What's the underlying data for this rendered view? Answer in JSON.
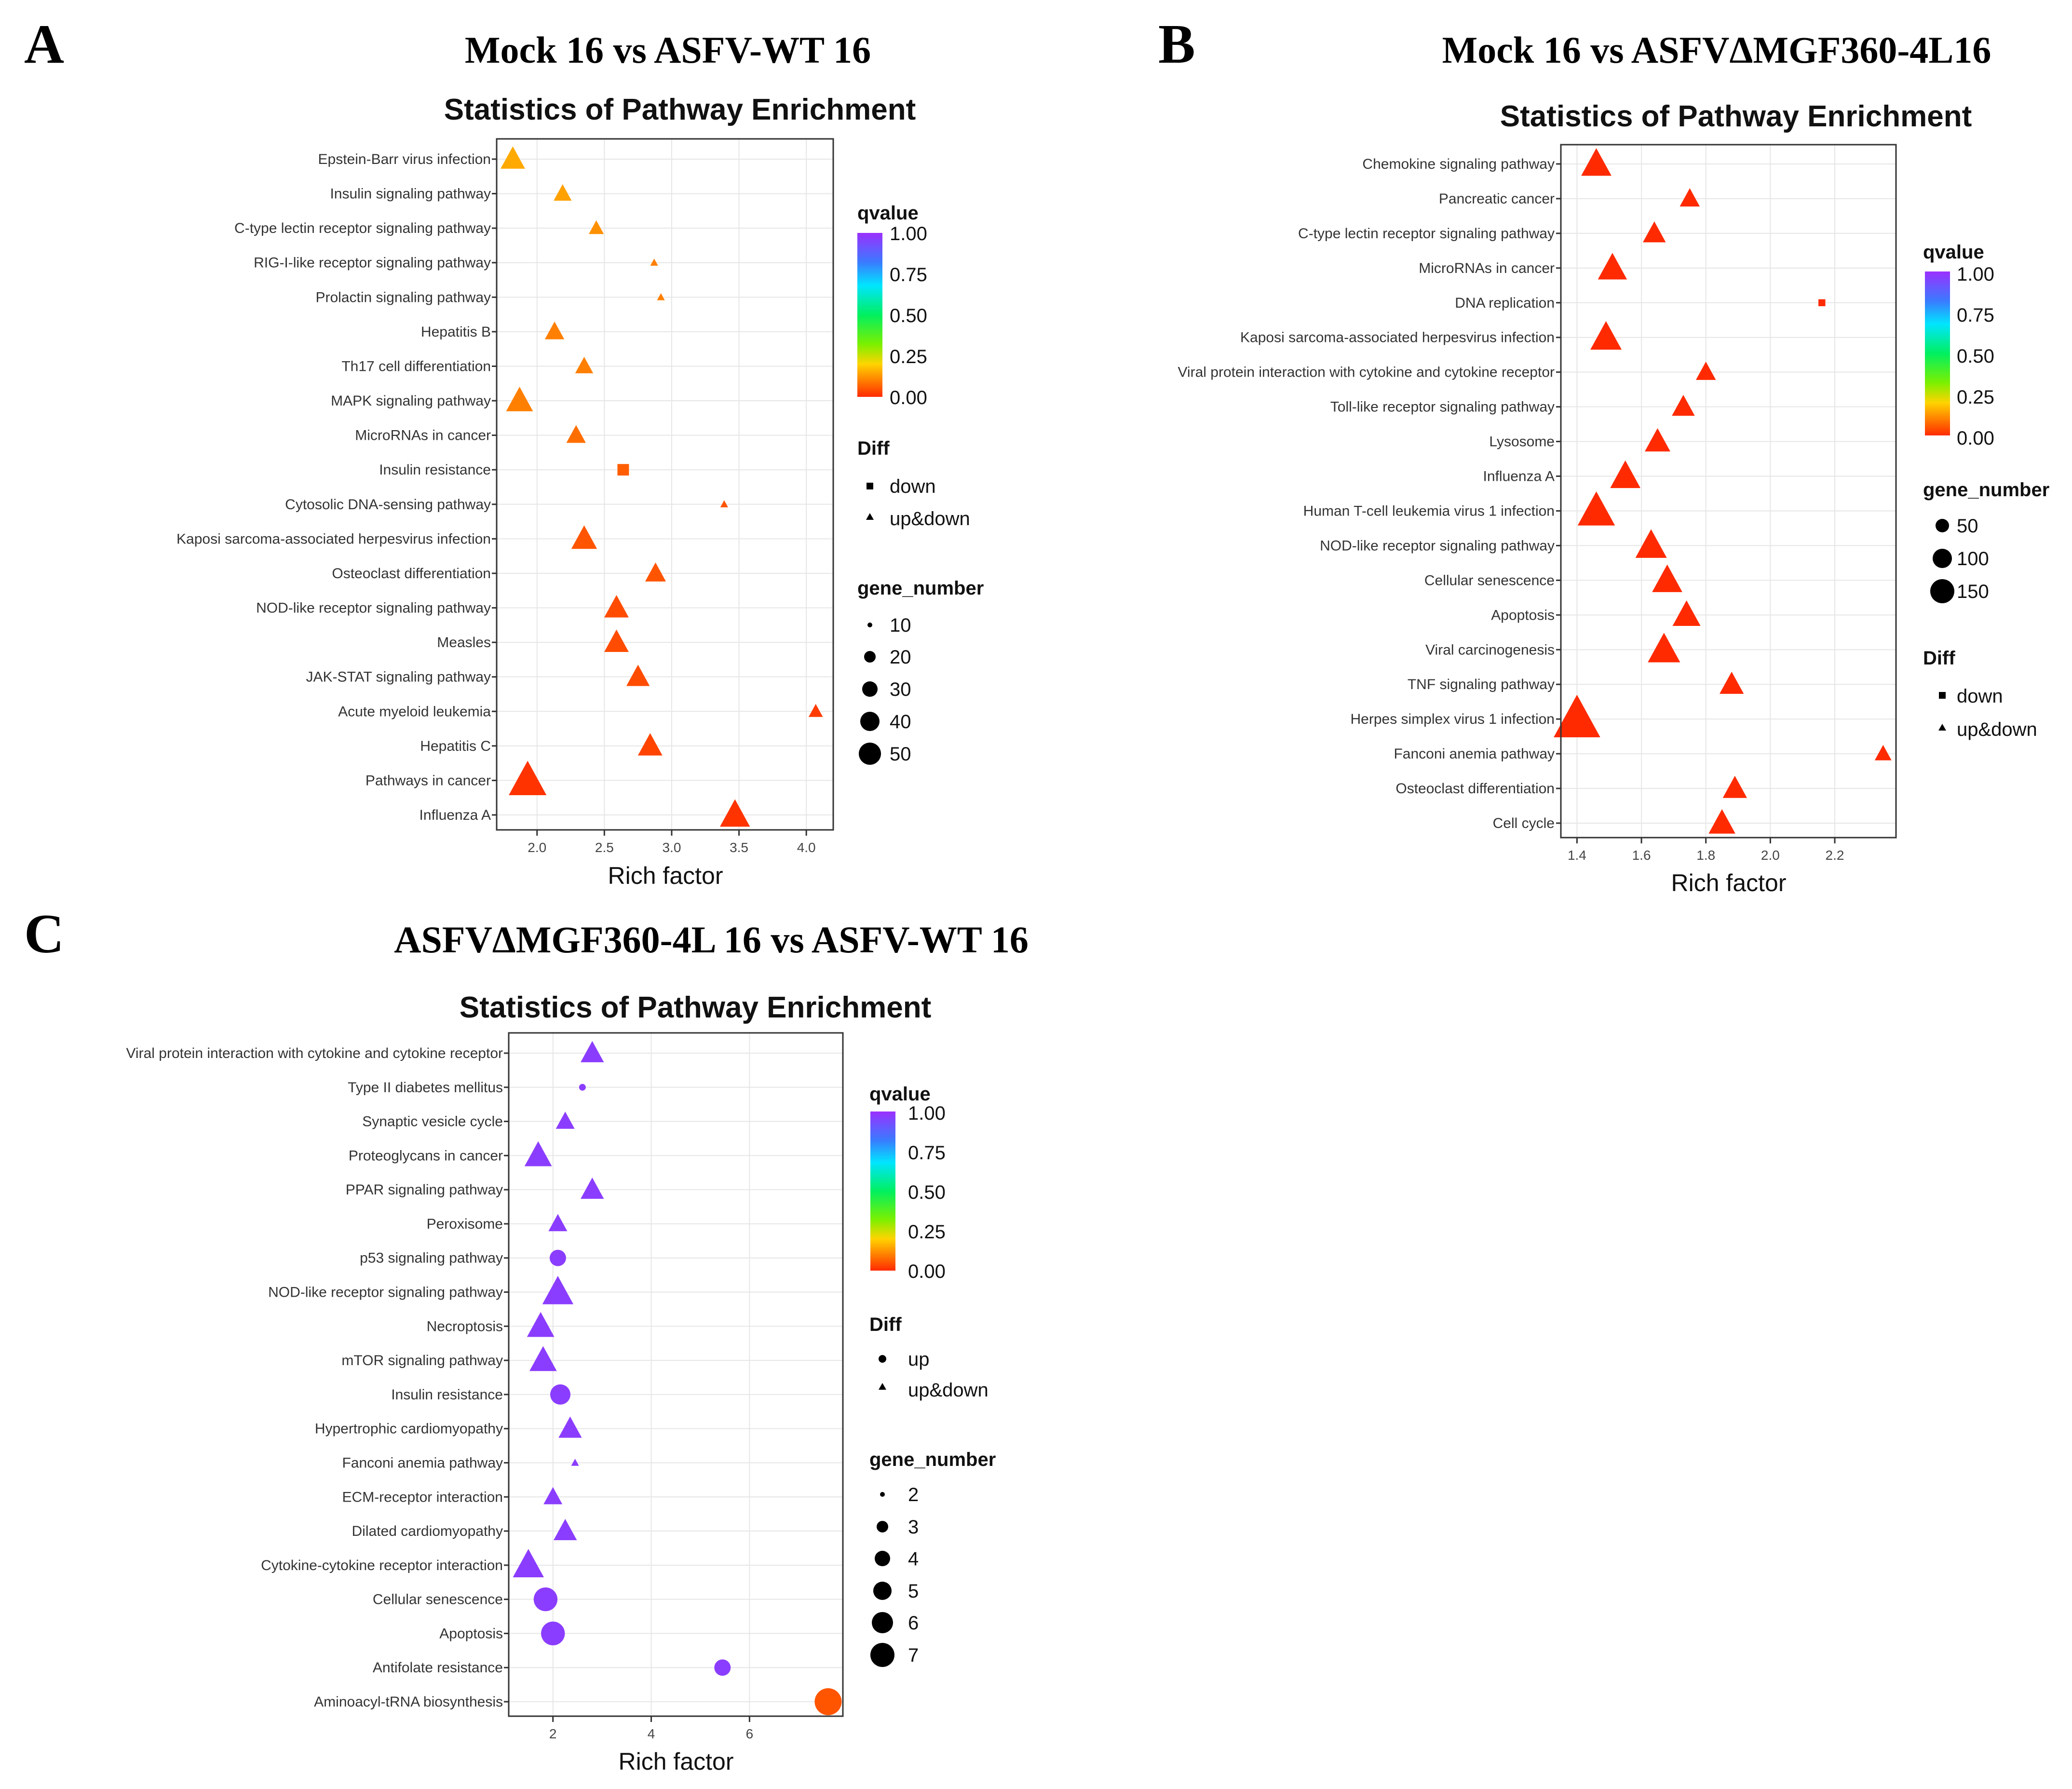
{
  "figure": {
    "letters": [
      "A",
      "B",
      "C"
    ]
  },
  "chart_data": [
    {
      "type": "scatter",
      "panel": "A",
      "panel_title": "Mock 16 vs ASFV-WT 16",
      "title": "Statistics of Pathway Enrichment",
      "xlabel": "Rich factor",
      "ylabel": "",
      "xlim": [
        1.7,
        4.2
      ],
      "xticks": [
        2.0,
        2.5,
        3.0,
        3.5,
        4.0
      ],
      "xtick_labels": [
        "2.0",
        "2.5",
        "3.0",
        "3.5",
        "4.0"
      ],
      "categories": [
        "Epstein-Barr virus infection",
        "Insulin signaling pathway",
        "C-type lectin receptor signaling pathway",
        "RIG-I-like receptor signaling pathway",
        "Prolactin signaling pathway",
        "Hepatitis B",
        "Th17 cell differentiation",
        "MAPK signaling pathway",
        "MicroRNAs in cancer",
        "Insulin resistance",
        "Cytosolic DNA-sensing pathway",
        "Kaposi sarcoma-associated herpesvirus infection",
        "Osteoclast differentiation",
        "NOD-like receptor signaling pathway",
        "Measles",
        "JAK-STAT signaling pathway",
        "Acute myeloid leukemia",
        "Hepatitis C",
        "Pathways in cancer",
        "Influenza A"
      ],
      "points": [
        {
          "x": 1.82,
          "qvalue": 0.15,
          "gene_number": 32,
          "diff": "up&down"
        },
        {
          "x": 2.19,
          "qvalue": 0.14,
          "gene_number": 22,
          "diff": "up&down"
        },
        {
          "x": 2.44,
          "qvalue": 0.12,
          "gene_number": 18,
          "diff": "up&down"
        },
        {
          "x": 2.87,
          "qvalue": 0.1,
          "gene_number": 8,
          "diff": "up&down"
        },
        {
          "x": 2.92,
          "qvalue": 0.1,
          "gene_number": 9,
          "diff": "up&down"
        },
        {
          "x": 2.13,
          "qvalue": 0.1,
          "gene_number": 24,
          "diff": "up&down"
        },
        {
          "x": 2.35,
          "qvalue": 0.1,
          "gene_number": 22,
          "diff": "up&down"
        },
        {
          "x": 1.87,
          "qvalue": 0.1,
          "gene_number": 36,
          "diff": "up&down"
        },
        {
          "x": 2.29,
          "qvalue": 0.08,
          "gene_number": 24,
          "diff": "up&down"
        },
        {
          "x": 2.64,
          "qvalue": 0.06,
          "gene_number": 20,
          "diff": "down"
        },
        {
          "x": 3.39,
          "qvalue": 0.05,
          "gene_number": 9,
          "diff": "up&down"
        },
        {
          "x": 2.35,
          "qvalue": 0.05,
          "gene_number": 34,
          "diff": "up&down"
        },
        {
          "x": 2.88,
          "qvalue": 0.05,
          "gene_number": 26,
          "diff": "up&down"
        },
        {
          "x": 2.59,
          "qvalue": 0.04,
          "gene_number": 32,
          "diff": "up&down"
        },
        {
          "x": 2.59,
          "qvalue": 0.04,
          "gene_number": 32,
          "diff": "up&down"
        },
        {
          "x": 2.75,
          "qvalue": 0.04,
          "gene_number": 30,
          "diff": "up&down"
        },
        {
          "x": 4.07,
          "qvalue": 0.02,
          "gene_number": 17,
          "diff": "up&down"
        },
        {
          "x": 2.84,
          "qvalue": 0.03,
          "gene_number": 32,
          "diff": "up&down"
        },
        {
          "x": 1.93,
          "qvalue": 0.01,
          "gene_number": 58,
          "diff": "up&down"
        },
        {
          "x": 3.47,
          "qvalue": 0.01,
          "gene_number": 42,
          "diff": "up&down"
        }
      ],
      "legend": {
        "qvalue_title": "qvalue",
        "qvalue_ticks": [
          "1.00",
          "0.75",
          "0.50",
          "0.25",
          "0.00"
        ],
        "diff_title": "Diff",
        "diff_items": [
          "down",
          "up&down"
        ],
        "size_title": "gene_number",
        "size_items": [
          "10",
          "20",
          "30",
          "40",
          "50"
        ]
      }
    },
    {
      "type": "scatter",
      "panel": "B",
      "panel_title": "Mock 16 vs ASFVΔMGF360-4L16",
      "title": "Statistics of Pathway Enrichment",
      "xlabel": "Rich factor",
      "ylabel": "",
      "xlim": [
        1.35,
        2.39
      ],
      "xticks": [
        1.4,
        1.6,
        1.8,
        2.0,
        2.2
      ],
      "xtick_labels": [
        "1.4",
        "1.6",
        "1.8",
        "2.0",
        "2.2"
      ],
      "categories": [
        "Chemokine signaling pathway",
        "Pancreatic cancer",
        "C-type lectin receptor signaling pathway",
        "MicroRNAs in cancer",
        "DNA replication",
        "Kaposi sarcoma-associated herpesvirus infection",
        "Viral protein interaction with cytokine and cytokine receptor",
        "Toll-like receptor signaling pathway",
        "Lysosome",
        "Influenza A",
        "Human T-cell leukemia virus 1 infection",
        "NOD-like receptor signaling pathway",
        "Cellular senescence",
        "Apoptosis",
        "Viral carcinogenesis",
        "TNF signaling pathway",
        "Herpes simplex virus 1 infection",
        "Fanconi anemia pathway",
        "Osteoclast differentiation",
        "Cell cycle"
      ],
      "points": [
        {
          "x": 1.46,
          "qvalue": 0.0,
          "gene_number": 85,
          "diff": "up&down"
        },
        {
          "x": 1.75,
          "qvalue": 0.0,
          "gene_number": 45,
          "diff": "up&down"
        },
        {
          "x": 1.64,
          "qvalue": 0.0,
          "gene_number": 55,
          "diff": "up&down"
        },
        {
          "x": 1.51,
          "qvalue": 0.0,
          "gene_number": 80,
          "diff": "up&down"
        },
        {
          "x": 2.16,
          "qvalue": 0.0,
          "gene_number": 18,
          "diff": "down"
        },
        {
          "x": 1.49,
          "qvalue": 0.0,
          "gene_number": 90,
          "diff": "up&down"
        },
        {
          "x": 1.8,
          "qvalue": 0.0,
          "gene_number": 45,
          "diff": "up&down"
        },
        {
          "x": 1.73,
          "qvalue": 0.0,
          "gene_number": 55,
          "diff": "up&down"
        },
        {
          "x": 1.65,
          "qvalue": 0.0,
          "gene_number": 65,
          "diff": "up&down"
        },
        {
          "x": 1.55,
          "qvalue": 0.0,
          "gene_number": 85,
          "diff": "up&down"
        },
        {
          "x": 1.46,
          "qvalue": 0.0,
          "gene_number": 120,
          "diff": "up&down"
        },
        {
          "x": 1.63,
          "qvalue": 0.0,
          "gene_number": 90,
          "diff": "up&down"
        },
        {
          "x": 1.68,
          "qvalue": 0.0,
          "gene_number": 85,
          "diff": "up&down"
        },
        {
          "x": 1.74,
          "qvalue": 0.0,
          "gene_number": 75,
          "diff": "up&down"
        },
        {
          "x": 1.67,
          "qvalue": 0.0,
          "gene_number": 95,
          "diff": "up&down"
        },
        {
          "x": 1.88,
          "qvalue": 0.0,
          "gene_number": 60,
          "diff": "up&down"
        },
        {
          "x": 1.4,
          "qvalue": 0.0,
          "gene_number": 175,
          "diff": "up&down"
        },
        {
          "x": 2.35,
          "qvalue": 0.0,
          "gene_number": 35,
          "diff": "up&down"
        },
        {
          "x": 1.89,
          "qvalue": 0.0,
          "gene_number": 60,
          "diff": "up&down"
        },
        {
          "x": 1.85,
          "qvalue": 0.0,
          "gene_number": 70,
          "diff": "up&down"
        }
      ],
      "legend": {
        "qvalue_title": "qvalue",
        "qvalue_ticks": [
          "1.00",
          "0.75",
          "0.50",
          "0.25",
          "0.00"
        ],
        "size_title": "gene_number",
        "size_items": [
          "50",
          "100",
          "150"
        ],
        "diff_title": "Diff",
        "diff_items": [
          "down",
          "up&down"
        ]
      }
    },
    {
      "type": "scatter",
      "panel": "C",
      "panel_title": "ASFVΔMGF360-4L 16 vs ASFV-WT 16",
      "title": "Statistics of Pathway Enrichment",
      "xlabel": "Rich factor",
      "ylabel": "",
      "xlim": [
        1.1,
        7.9
      ],
      "xticks": [
        2,
        4,
        6
      ],
      "xtick_labels": [
        "2",
        "4",
        "6"
      ],
      "categories": [
        "Viral protein interaction with cytokine and cytokine receptor",
        "Type II diabetes mellitus",
        "Synaptic vesicle cycle",
        "Proteoglycans in cancer",
        "PPAR signaling pathway",
        "Peroxisome",
        "p53 signaling pathway",
        "NOD-like receptor signaling pathway",
        "Necroptosis",
        "mTOR signaling pathway",
        "Insulin resistance",
        "Hypertrophic cardiomyopathy",
        "Fanconi anemia pathway",
        "ECM-receptor interaction",
        "Dilated cardiomyopathy",
        "Cytokine-cytokine receptor interaction",
        "Cellular senescence",
        "Apoptosis",
        "Antifolate resistance",
        "Aminoacyl-tRNA biosynthesis"
      ],
      "points": [
        {
          "x": 2.8,
          "qvalue": 0.97,
          "gene_number": 5,
          "diff": "up&down"
        },
        {
          "x": 2.6,
          "qvalue": 0.97,
          "gene_number": 2,
          "diff": "up"
        },
        {
          "x": 2.25,
          "qvalue": 0.97,
          "gene_number": 4,
          "diff": "up&down"
        },
        {
          "x": 1.7,
          "qvalue": 0.97,
          "gene_number": 6,
          "diff": "up&down"
        },
        {
          "x": 2.8,
          "qvalue": 0.97,
          "gene_number": 5,
          "diff": "up&down"
        },
        {
          "x": 2.1,
          "qvalue": 0.97,
          "gene_number": 4,
          "diff": "up&down"
        },
        {
          "x": 2.1,
          "qvalue": 0.97,
          "gene_number": 4,
          "diff": "up"
        },
        {
          "x": 2.1,
          "qvalue": 0.97,
          "gene_number": 7,
          "diff": "up&down"
        },
        {
          "x": 1.75,
          "qvalue": 0.97,
          "gene_number": 6,
          "diff": "up&down"
        },
        {
          "x": 1.8,
          "qvalue": 0.97,
          "gene_number": 6,
          "diff": "up&down"
        },
        {
          "x": 2.15,
          "qvalue": 0.97,
          "gene_number": 5,
          "diff": "up"
        },
        {
          "x": 2.35,
          "qvalue": 0.97,
          "gene_number": 5,
          "diff": "up&down"
        },
        {
          "x": 2.45,
          "qvalue": 0.97,
          "gene_number": 2,
          "diff": "up&down"
        },
        {
          "x": 2.0,
          "qvalue": 0.97,
          "gene_number": 4,
          "diff": "up&down"
        },
        {
          "x": 2.25,
          "qvalue": 0.97,
          "gene_number": 5,
          "diff": "up&down"
        },
        {
          "x": 1.5,
          "qvalue": 0.97,
          "gene_number": 7,
          "diff": "up&down"
        },
        {
          "x": 1.85,
          "qvalue": 0.97,
          "gene_number": 6,
          "diff": "up"
        },
        {
          "x": 2.0,
          "qvalue": 0.97,
          "gene_number": 6,
          "diff": "up"
        },
        {
          "x": 5.45,
          "qvalue": 0.97,
          "gene_number": 4,
          "diff": "up"
        },
        {
          "x": 7.6,
          "qvalue": 0.05,
          "gene_number": 7,
          "diff": "up"
        }
      ],
      "legend": {
        "qvalue_title": "qvalue",
        "qvalue_ticks": [
          "1.00",
          "0.75",
          "0.50",
          "0.25",
          "0.00"
        ],
        "diff_title": "Diff",
        "diff_items": [
          "up",
          "up&down"
        ],
        "size_title": "gene_number",
        "size_items": [
          "2",
          "3",
          "4",
          "5",
          "6",
          "7"
        ]
      }
    }
  ]
}
